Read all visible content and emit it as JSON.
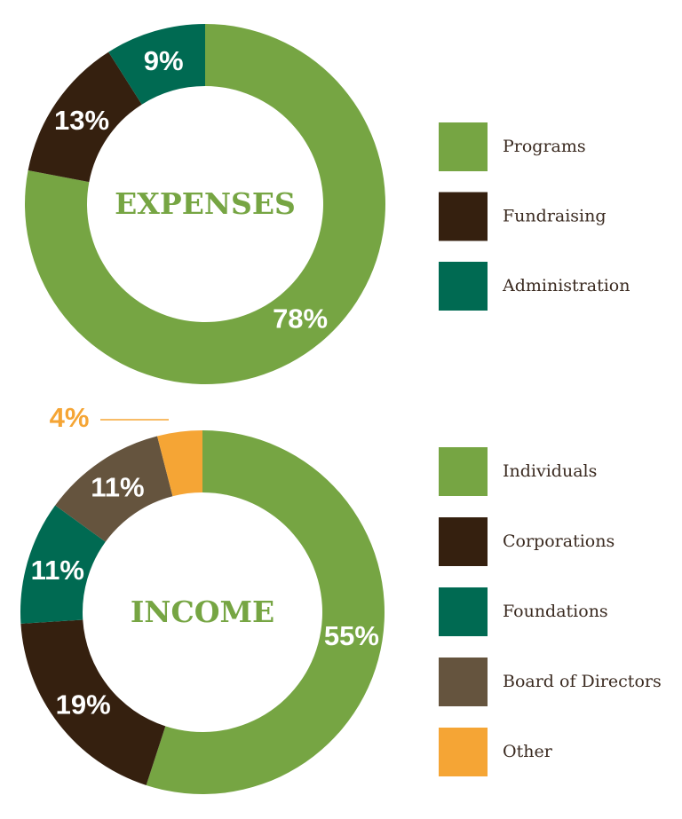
{
  "chart_data": [
    {
      "type": "pie",
      "title": "EXPENSES",
      "categories": [
        "Programs",
        "Fundraising",
        "Administration"
      ],
      "values": [
        78,
        13,
        9
      ],
      "value_labels": [
        "78%",
        "13%",
        "9%"
      ],
      "colors": [
        "#76a543",
        "#35200f",
        "#006a52"
      ]
    },
    {
      "type": "pie",
      "title": "INCOME",
      "categories": [
        "Individuals",
        "Corporations",
        "Foundations",
        "Board of Directors",
        "Other"
      ],
      "values": [
        55,
        19,
        11,
        11,
        4
      ],
      "value_labels": [
        "55%",
        "19%",
        "11%",
        "11%",
        "4%"
      ],
      "colors": [
        "#76a543",
        "#35200f",
        "#006a52",
        "#65543e",
        "#f5a535"
      ]
    }
  ]
}
